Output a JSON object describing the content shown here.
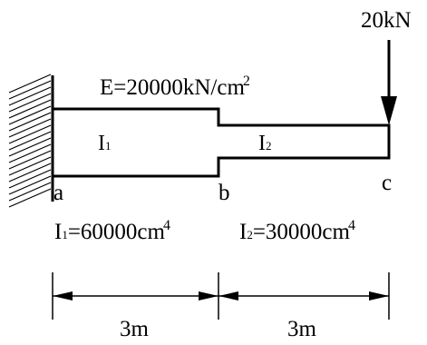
{
  "load": {
    "label": "20kN"
  },
  "material": {
    "prefix": "E=20000kN/cm",
    "exponent": "2"
  },
  "sections": {
    "left": {
      "symbol": "I",
      "sub": "1"
    },
    "right": {
      "symbol": "I",
      "sub": "2"
    }
  },
  "points": {
    "a": "a",
    "b": "b",
    "c": "c"
  },
  "inertia": {
    "left": {
      "symbol": "I",
      "sub": "1",
      "value": "=60000cm",
      "exponent": "4"
    },
    "right": {
      "symbol": "I",
      "sub": "2",
      "value": "=30000cm",
      "exponent": "4"
    }
  },
  "dimensions": {
    "left": "3m",
    "right": "3m"
  },
  "colors": {
    "stroke": "#000000",
    "background": "#ffffff"
  }
}
